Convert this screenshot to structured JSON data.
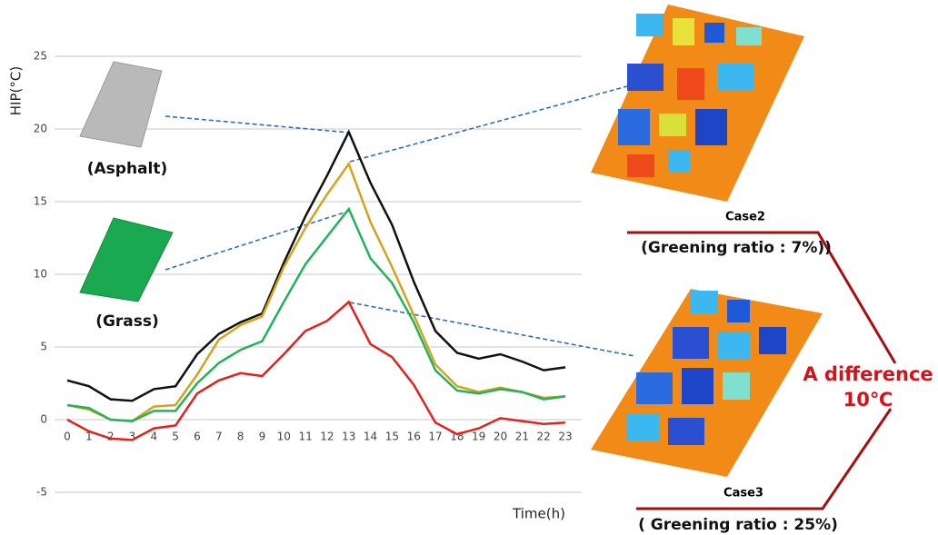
{
  "chart_data": {
    "type": "line",
    "y_label": "HIP(°C)",
    "x_label": "Time(h)",
    "x": [
      0,
      1,
      2,
      3,
      4,
      5,
      6,
      7,
      8,
      9,
      10,
      11,
      12,
      13,
      14,
      15,
      16,
      17,
      18,
      19,
      20,
      21,
      22,
      23
    ],
    "xlim": [
      0,
      23
    ],
    "ylim": [
      -5,
      25
    ],
    "yticks": [
      -5,
      0,
      5,
      10,
      15,
      20,
      25
    ],
    "grid": true,
    "series": [
      {
        "color": "#111111",
        "values": [
          2.7,
          2.3,
          1.4,
          1.3,
          2.1,
          2.3,
          4.5,
          5.9,
          6.7,
          7.3,
          10.8,
          14.0,
          16.8,
          19.8,
          16.3,
          13.4,
          9.5,
          6.1,
          4.6,
          4.2,
          4.5,
          4.0,
          3.4,
          3.6
        ]
      },
      {
        "color": "#d4a21c",
        "values": [
          1.0,
          0.7,
          0.0,
          -0.1,
          0.9,
          1.0,
          3.1,
          5.5,
          6.5,
          7.1,
          10.5,
          13.2,
          15.5,
          17.6,
          13.6,
          10.5,
          7.2,
          3.8,
          2.3,
          1.9,
          2.2,
          1.9,
          1.5,
          1.6
        ]
      },
      {
        "color": "#22b35a",
        "values": [
          1.0,
          0.8,
          0.0,
          -0.1,
          0.6,
          0.6,
          2.5,
          3.9,
          4.8,
          5.4,
          8.1,
          10.7,
          12.6,
          14.5,
          11.1,
          9.4,
          6.7,
          3.4,
          2.0,
          1.8,
          2.1,
          1.9,
          1.4,
          1.6
        ]
      },
      {
        "color": "#e0231c",
        "values": [
          0.0,
          -0.8,
          -1.3,
          -1.4,
          -0.6,
          -0.4,
          1.8,
          2.7,
          3.2,
          3.0,
          4.5,
          6.1,
          6.8,
          8.1,
          5.2,
          4.3,
          2.4,
          -0.2,
          -1.0,
          -0.6,
          0.1,
          -0.1,
          -0.3,
          -0.2
        ]
      }
    ],
    "annotations": {
      "asphalt": "(Asphalt)",
      "grass": "(Grass)",
      "case2": "Case2",
      "case2_ratio": "(Greening ratio : 7%))",
      "case3": "Case3",
      "case3_ratio": "( Greening ratio : 25%)",
      "difference": "A difference",
      "difference_value": "10℃"
    }
  }
}
